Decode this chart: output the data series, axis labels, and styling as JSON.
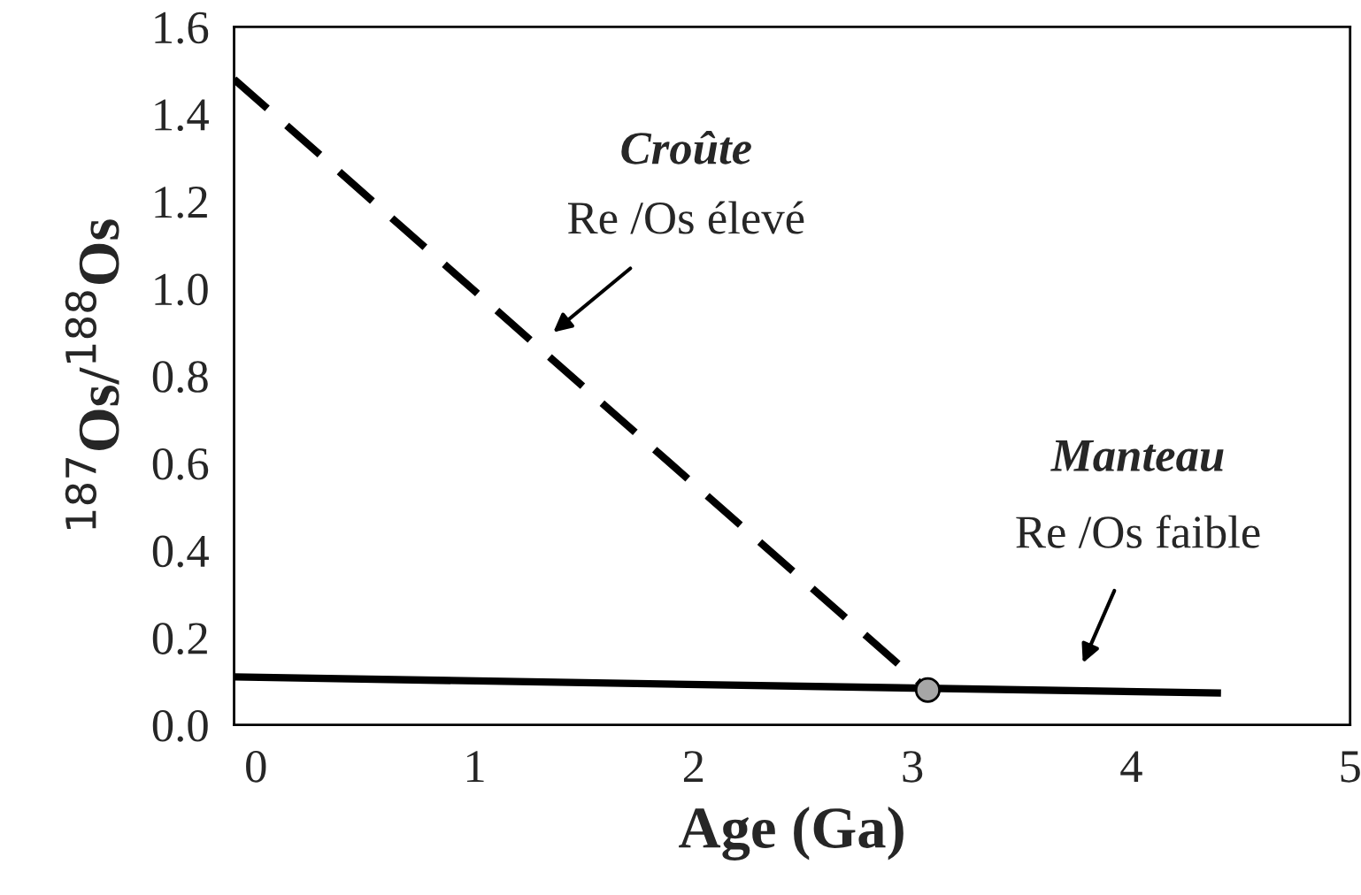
{
  "chart_data": {
    "type": "line",
    "xlabel": "Age (Ga)",
    "ylabel": "$^{187}$Os/$^{188}$Os",
    "xlim": [
      -0.1,
      5
    ],
    "ylim": [
      0,
      1.6
    ],
    "xticks": [
      0,
      1,
      2,
      3,
      4,
      5
    ],
    "yticks": [
      {
        "value": 0,
        "label": "0.0"
      },
      {
        "value": 0.2,
        "label": "0.2"
      },
      {
        "value": 0.4,
        "label": "0.4"
      },
      {
        "value": 0.6,
        "label": "0.6"
      },
      {
        "value": 0.8,
        "label": "0.8"
      },
      {
        "value": 1.0,
        "label": "1.0"
      },
      {
        "value": 1.2,
        "label": "1.2"
      },
      {
        "value": 1.4,
        "label": "1.4"
      },
      {
        "value": 1.6,
        "label": "1.6"
      }
    ],
    "grid": false,
    "legend": false,
    "series": [
      {
        "line_style": "dashed",
        "color": "#000000",
        "x": [
          -0.1,
          3.07
        ],
        "values": [
          1.48,
          0.08
        ]
      },
      {
        "line_style": "solid",
        "color": "#000000",
        "x": [
          -0.1,
          4.41
        ],
        "values": [
          0.11,
          0.073
        ]
      },
      {
        "type": "scatter",
        "marker": "circle",
        "color": "#a6a6a6",
        "x": [
          3.07
        ],
        "values": [
          0.08
        ]
      }
    ],
    "annotations": [
      "Croûte",
      "Re /Os élevé",
      "Manteau",
      "Re /Os faible"
    ]
  }
}
